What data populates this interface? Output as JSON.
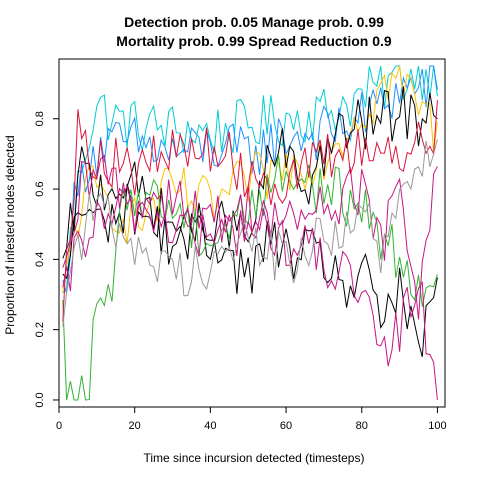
{
  "chart_data": {
    "type": "line",
    "title": [
      "Detection prob. 0.05 Manage prob. 0.99",
      "Mortality prob. 0.99 Spread Reduction 0.9"
    ],
    "xlabel": "Time since incursion detected (timesteps)",
    "ylabel": "Proportion of infested nodes detected",
    "xlim": [
      0,
      102
    ],
    "ylim": [
      -0.02,
      0.97
    ],
    "xticks": [
      0,
      20,
      40,
      60,
      80,
      100
    ],
    "yticks": [
      0.0,
      0.2,
      0.4,
      0.6,
      0.8
    ],
    "grid": false,
    "legend": "none",
    "series_keypoints": [
      {
        "color": "#00CED1",
        "points": [
          [
            1,
            0.27
          ],
          [
            3,
            0.45
          ],
          [
            6,
            0.68
          ],
          [
            8,
            0.77
          ],
          [
            10,
            0.84
          ],
          [
            14,
            0.8
          ],
          [
            20,
            0.78
          ],
          [
            30,
            0.77
          ],
          [
            40,
            0.76
          ],
          [
            50,
            0.78
          ],
          [
            60,
            0.8
          ],
          [
            70,
            0.82
          ],
          [
            80,
            0.86
          ],
          [
            90,
            0.92
          ],
          [
            100,
            0.94
          ]
        ]
      },
      {
        "color": "#1E90FF",
        "points": [
          [
            1,
            0.3
          ],
          [
            4,
            0.55
          ],
          [
            8,
            0.7
          ],
          [
            12,
            0.72
          ],
          [
            20,
            0.73
          ],
          [
            30,
            0.7
          ],
          [
            40,
            0.72
          ],
          [
            50,
            0.7
          ],
          [
            60,
            0.75
          ],
          [
            70,
            0.76
          ],
          [
            80,
            0.8
          ],
          [
            90,
            0.88
          ],
          [
            100,
            0.9
          ]
        ]
      },
      {
        "color": "#FFC000",
        "points": [
          [
            1,
            0.26
          ],
          [
            4,
            0.5
          ],
          [
            8,
            0.6
          ],
          [
            15,
            0.55
          ],
          [
            20,
            0.5
          ],
          [
            30,
            0.6
          ],
          [
            40,
            0.55
          ],
          [
            50,
            0.62
          ],
          [
            60,
            0.66
          ],
          [
            70,
            0.7
          ],
          [
            80,
            0.82
          ],
          [
            88,
            0.92
          ],
          [
            95,
            0.85
          ],
          [
            100,
            0.75
          ]
        ]
      },
      {
        "color": "#000000",
        "points": [
          [
            1,
            0.35
          ],
          [
            3,
            0.48
          ],
          [
            6,
            0.66
          ],
          [
            10,
            0.6
          ],
          [
            15,
            0.62
          ],
          [
            20,
            0.6
          ],
          [
            25,
            0.55
          ],
          [
            30,
            0.5
          ],
          [
            35,
            0.45
          ],
          [
            40,
            0.48
          ],
          [
            45,
            0.5
          ],
          [
            50,
            0.45
          ],
          [
            55,
            0.65
          ],
          [
            58,
            0.72
          ],
          [
            62,
            0.65
          ],
          [
            65,
            0.6
          ],
          [
            70,
            0.7
          ],
          [
            75,
            0.76
          ],
          [
            80,
            0.78
          ],
          [
            85,
            0.8
          ],
          [
            90,
            0.82
          ],
          [
            95,
            0.8
          ],
          [
            100,
            0.86
          ]
        ]
      },
      {
        "color": "#000000",
        "points": [
          [
            1,
            0.3
          ],
          [
            5,
            0.55
          ],
          [
            10,
            0.5
          ],
          [
            20,
            0.55
          ],
          [
            30,
            0.45
          ],
          [
            40,
            0.5
          ],
          [
            45,
            0.4
          ],
          [
            50,
            0.35
          ],
          [
            55,
            0.45
          ],
          [
            60,
            0.42
          ],
          [
            70,
            0.4
          ],
          [
            78,
            0.3
          ],
          [
            82,
            0.35
          ],
          [
            85,
            0.25
          ],
          [
            90,
            0.3
          ],
          [
            95,
            0.12
          ],
          [
            100,
            0.35
          ]
        ]
      },
      {
        "color": "#32B432",
        "points": [
          [
            1,
            0.22
          ],
          [
            2,
            0.0
          ],
          [
            8,
            0.0
          ],
          [
            10,
            0.3
          ],
          [
            12,
            0.2
          ],
          [
            16,
            0.5
          ],
          [
            20,
            0.6
          ],
          [
            30,
            0.55
          ],
          [
            40,
            0.45
          ],
          [
            50,
            0.55
          ],
          [
            60,
            0.65
          ],
          [
            70,
            0.6
          ],
          [
            80,
            0.55
          ],
          [
            90,
            0.4
          ],
          [
            100,
            0.3
          ]
        ]
      },
      {
        "color": "#C71585",
        "points": [
          [
            1,
            0.25
          ],
          [
            5,
            0.45
          ],
          [
            10,
            0.5
          ],
          [
            20,
            0.55
          ],
          [
            30,
            0.5
          ],
          [
            40,
            0.45
          ],
          [
            50,
            0.5
          ],
          [
            60,
            0.45
          ],
          [
            70,
            0.4
          ],
          [
            80,
            0.3
          ],
          [
            85,
            0.1
          ],
          [
            90,
            0.2
          ],
          [
            95,
            0.35
          ],
          [
            100,
            0.0
          ]
        ]
      },
      {
        "color": "#C71585",
        "points": [
          [
            1,
            0.3
          ],
          [
            6,
            0.6
          ],
          [
            12,
            0.65
          ],
          [
            20,
            0.55
          ],
          [
            30,
            0.6
          ],
          [
            40,
            0.5
          ],
          [
            50,
            0.55
          ],
          [
            60,
            0.5
          ],
          [
            70,
            0.55
          ],
          [
            80,
            0.6
          ],
          [
            86,
            0.45
          ],
          [
            90,
            0.6
          ],
          [
            95,
            0.3
          ],
          [
            100,
            0.65
          ]
        ]
      },
      {
        "color": "#DC143C",
        "points": [
          [
            1,
            0.3
          ],
          [
            5,
            0.75
          ],
          [
            10,
            0.7
          ],
          [
            20,
            0.65
          ],
          [
            30,
            0.7
          ],
          [
            40,
            0.72
          ],
          [
            50,
            0.65
          ],
          [
            60,
            0.62
          ],
          [
            70,
            0.68
          ],
          [
            80,
            0.72
          ],
          [
            90,
            0.7
          ],
          [
            100,
            0.78
          ]
        ]
      },
      {
        "color": "#999999",
        "points": [
          [
            1,
            0.28
          ],
          [
            5,
            0.45
          ],
          [
            10,
            0.55
          ],
          [
            20,
            0.45
          ],
          [
            30,
            0.35
          ],
          [
            40,
            0.4
          ],
          [
            50,
            0.45
          ],
          [
            60,
            0.4
          ],
          [
            70,
            0.45
          ],
          [
            75,
            0.5
          ],
          [
            80,
            0.55
          ],
          [
            85,
            0.4
          ],
          [
            90,
            0.55
          ],
          [
            95,
            0.65
          ],
          [
            100,
            0.77
          ]
        ]
      }
    ]
  }
}
